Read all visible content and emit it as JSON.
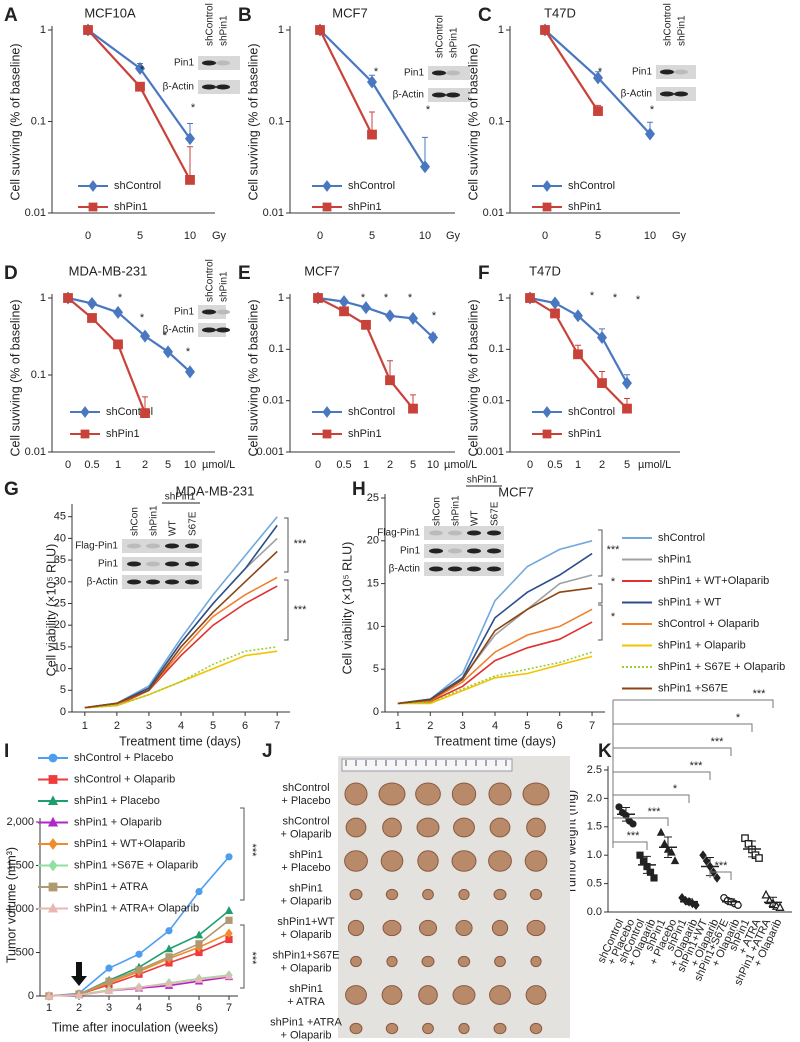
{
  "chart_data": [
    {
      "type": "line",
      "panel": "A",
      "title": "MCF10A",
      "ylabel": "Cell suviving (% of baseline)",
      "x_unit": "Gy",
      "log_scale": true,
      "ylim": [
        0.01,
        1
      ],
      "yticks": [
        0.01,
        0.1,
        1
      ],
      "categories": [
        "0",
        "5",
        "10"
      ],
      "series": [
        {
          "name": "shControl",
          "color": "#4a78c0",
          "marker": "diamond",
          "values": [
            1,
            0.38,
            0.065
          ],
          "errors": [
            null,
            0.05,
            0.03
          ]
        },
        {
          "name": "shPin1",
          "color": "#c9423a",
          "marker": "square",
          "values": [
            1,
            0.24,
            0.023
          ],
          "errors": [
            null,
            null,
            0.03
          ]
        }
      ],
      "legend": "lower-left",
      "annotations": [
        "*",
        "*"
      ],
      "inset": {
        "columns": [
          "shControl",
          "shPin1"
        ],
        "rows": [
          "Pin1",
          "β-Actin"
        ]
      }
    },
    {
      "type": "line",
      "panel": "B",
      "title": "MCF7",
      "ylabel": "Cell suviving (% of baseline)",
      "x_unit": "Gy",
      "log_scale": true,
      "ylim": [
        0.01,
        1
      ],
      "yticks": [
        0.01,
        0.1,
        1
      ],
      "categories": [
        "0",
        "5",
        "10"
      ],
      "series": [
        {
          "name": "shControl",
          "color": "#4a78c0",
          "marker": "diamond",
          "values": [
            1,
            0.27,
            0.032
          ],
          "errors": [
            null,
            0.05,
            0.035
          ]
        },
        {
          "name": "shPin1",
          "color": "#c9423a",
          "marker": "square",
          "values": [
            1,
            0.072,
            null
          ],
          "errors": [
            null,
            0.055,
            null
          ]
        }
      ],
      "legend": "lower-left",
      "annotations": [
        "*",
        "*"
      ],
      "inset": {
        "columns": [
          "shControl",
          "shPin1"
        ],
        "rows": [
          "Pin1",
          "β-Actin"
        ]
      }
    },
    {
      "type": "line",
      "panel": "C",
      "title": "T47D",
      "ylabel": "Cell suviving (% of baseline)",
      "x_unit": "Gy",
      "log_scale": true,
      "ylim": [
        0.01,
        1
      ],
      "yticks": [
        0.01,
        0.1,
        1
      ],
      "categories": [
        "0",
        "5",
        "10"
      ],
      "series": [
        {
          "name": "shControl",
          "color": "#4a78c0",
          "marker": "diamond",
          "values": [
            1,
            0.3,
            0.073
          ],
          "errors": [
            null,
            0.05,
            0.025
          ]
        },
        {
          "name": "shPin1",
          "color": "#c9423a",
          "marker": "square",
          "values": [
            1,
            0.13,
            null
          ],
          "errors": [
            null,
            0.02,
            null
          ]
        }
      ],
      "legend": "lower-left",
      "annotations": [
        "*",
        "*"
      ],
      "inset": {
        "columns": [
          "shControl",
          "shPin1"
        ],
        "rows": [
          "Pin1",
          "β-Actin"
        ]
      }
    },
    {
      "type": "line",
      "panel": "D",
      "title": "MDA-MB-231",
      "ylabel": "Cell suviving (% of baseline)",
      "x_unit": "µmol/L",
      "log_scale": true,
      "ylim": [
        0.01,
        1
      ],
      "yticks": [
        0.01,
        0.1,
        1
      ],
      "categories": [
        "0",
        "0.5",
        "1",
        "2",
        "5",
        "10"
      ],
      "series": [
        {
          "name": "shControl",
          "color": "#4a78c0",
          "marker": "diamond",
          "values": [
            1,
            0.85,
            0.65,
            0.32,
            0.2,
            0.11
          ],
          "errors": [
            null,
            null,
            null,
            null,
            null,
            null
          ]
        },
        {
          "name": "shPin1",
          "color": "#c9423a",
          "marker": "square",
          "values": [
            1,
            0.55,
            0.25,
            0.032,
            null,
            null
          ],
          "errors": [
            null,
            null,
            0.03,
            0.02,
            null,
            null
          ]
        }
      ],
      "legend": "lower-left",
      "annotations": [
        "*",
        "*",
        "*",
        "*"
      ],
      "inset": {
        "columns": [
          "shControl",
          "shPin1"
        ],
        "rows": [
          "Pin1",
          "β-Actin"
        ]
      }
    },
    {
      "type": "line",
      "panel": "E",
      "title": "MCF7",
      "ylabel": "Cell suviving (% of baseline)",
      "x_unit": "µmol/L",
      "log_scale": true,
      "ylim": [
        0.001,
        1
      ],
      "yticks": [
        0.001,
        0.01,
        0.1,
        1
      ],
      "categories": [
        "0",
        "0.5",
        "1",
        "2",
        "5",
        "10"
      ],
      "series": [
        {
          "name": "shControl",
          "color": "#4a78c0",
          "marker": "diamond",
          "values": [
            1,
            0.85,
            0.65,
            0.45,
            0.4,
            0.17
          ],
          "errors": [
            null,
            null,
            null,
            null,
            null,
            0.03
          ]
        },
        {
          "name": "shPin1",
          "color": "#c9423a",
          "marker": "square",
          "values": [
            1,
            0.55,
            0.3,
            0.025,
            0.007,
            null
          ],
          "errors": [
            null,
            null,
            null,
            0.035,
            0.006,
            null
          ]
        }
      ],
      "legend": "lower-left",
      "annotations": [
        "*",
        "*",
        "*",
        "*"
      ]
    },
    {
      "type": "line",
      "panel": "F",
      "title": "T47D",
      "ylabel": "Cell suviving (% of baseline)",
      "x_unit": "µmol/L",
      "log_scale": true,
      "ylim": [
        0.001,
        1
      ],
      "yticks": [
        0.001,
        0.01,
        0.1,
        1
      ],
      "categories": [
        "0",
        "0.5",
        "1",
        "2",
        "5"
      ],
      "series": [
        {
          "name": "shControl",
          "color": "#4a78c0",
          "marker": "diamond",
          "values": [
            1,
            0.8,
            0.45,
            0.17,
            0.022
          ],
          "errors": [
            null,
            null,
            null,
            0.08,
            0.01
          ]
        },
        {
          "name": "shPin1",
          "color": "#c9423a",
          "marker": "square",
          "values": [
            1,
            0.5,
            0.08,
            0.022,
            0.007
          ],
          "errors": [
            null,
            null,
            0.04,
            0.015,
            0.004
          ]
        }
      ],
      "legend": "lower-left",
      "annotations": [
        "*",
        "*",
        "*"
      ]
    },
    {
      "type": "line",
      "panel": "G",
      "title": "MDA-MB-231",
      "ylabel": "Cell viability (×10⁵ RLU)",
      "xlabel": "Treatment time (days)",
      "ylim": [
        0,
        47
      ],
      "yticks": [
        0,
        5,
        10,
        15,
        20,
        25,
        30,
        35,
        40,
        45
      ],
      "xlim": [
        0.6,
        7.4
      ],
      "xticks": [
        1,
        2,
        3,
        4,
        5,
        6,
        7
      ],
      "x": [
        1,
        2,
        3,
        4,
        5,
        6,
        7
      ],
      "series": [
        {
          "color": "#72a8dc",
          "values": [
            1,
            2,
            6,
            17,
            27,
            36,
            45
          ]
        },
        {
          "color": "#a0a0a0",
          "values": [
            1,
            2,
            5.5,
            16,
            25,
            33,
            40
          ]
        },
        {
          "color": "#e03030",
          "values": [
            1,
            1.5,
            5,
            13,
            20,
            25,
            29
          ]
        },
        {
          "color": "#2b4f8a",
          "values": [
            1,
            2,
            5.5,
            16,
            25,
            33,
            43
          ]
        },
        {
          "color": "#f08030",
          "values": [
            1,
            1.8,
            5,
            14,
            22,
            27,
            31
          ]
        },
        {
          "color": "#f2c400",
          "values": [
            1,
            1.5,
            4,
            7,
            10,
            13,
            14
          ]
        },
        {
          "color": "#9acd32",
          "line_style": "dotted",
          "values": [
            1,
            1.5,
            4,
            7,
            11,
            14,
            15
          ]
        },
        {
          "color": "#8b4513",
          "values": [
            1,
            2,
            5,
            15,
            23,
            30,
            37
          ]
        }
      ],
      "annotations": [
        "***",
        "***"
      ],
      "inset": {
        "columns": [
          "shCon",
          "shPin1",
          "WT",
          "S67E"
        ],
        "group": "shPin1",
        "rows": [
          "Flag-Pin1",
          "Pin1",
          "β-Actin"
        ]
      }
    },
    {
      "type": "line",
      "panel": "H",
      "title": "MCF7",
      "ylabel": "Cell viability (×10⁵ RLU)",
      "xlabel": "Treatment time (days)",
      "ylim": [
        0,
        25
      ],
      "yticks": [
        0,
        5,
        10,
        15,
        20,
        25
      ],
      "xlim": [
        0.6,
        7.4
      ],
      "xticks": [
        1,
        2,
        3,
        4,
        5,
        6,
        7
      ],
      "x": [
        1,
        2,
        3,
        4,
        5,
        6,
        7
      ],
      "series": [
        {
          "name": "shControl",
          "color": "#72a8dc",
          "values": [
            1,
            1.5,
            4.5,
            13,
            17,
            19,
            20
          ]
        },
        {
          "name": "shPin1",
          "color": "#a0a0a0",
          "values": [
            1,
            1.3,
            4,
            9,
            12,
            15,
            16
          ]
        },
        {
          "name": "shPin1 + WT+Olaparib",
          "color": "#e03030",
          "values": [
            1,
            1.2,
            3,
            6,
            7.5,
            8.5,
            10.5
          ]
        },
        {
          "name": "shPin1 + WT",
          "color": "#2b4f8a",
          "values": [
            1,
            1.5,
            4,
            11,
            14,
            16,
            18.5
          ]
        },
        {
          "name": "shControl + Olaparib",
          "color": "#f08030",
          "values": [
            1,
            1.3,
            3.5,
            7,
            9,
            10,
            12
          ]
        },
        {
          "name": "shPin1 + Olaparib",
          "color": "#f2c400",
          "values": [
            1,
            1,
            2.5,
            4,
            4.5,
            5.5,
            6.5
          ]
        },
        {
          "name": "shPin1 + S67E + Olaparib",
          "color": "#9acd32",
          "line_style": "dotted",
          "values": [
            1,
            1.1,
            2.7,
            4.2,
            5,
            5.8,
            7
          ]
        },
        {
          "name": "shPin1 +S67E",
          "color": "#8b4513",
          "values": [
            1,
            1.4,
            3.8,
            9.5,
            12,
            14,
            14.5
          ]
        }
      ],
      "legend": "right",
      "annotations": [
        "***",
        "*",
        "*"
      ],
      "inset": {
        "columns": [
          "shCon",
          "shPin1",
          "WT",
          "S67E"
        ],
        "group": "shPin1",
        "rows": [
          "Flag-Pin1",
          "Pin1",
          "β-Actin"
        ]
      }
    },
    {
      "type": "line",
      "panel": "I",
      "ylabel": "Tumor volume (mm³)",
      "xlabel": "Time after inoculation (weeks)",
      "ylim": [
        0,
        2000
      ],
      "yticks": [
        0,
        500,
        {
          "value": 1000,
          "label": "1,000"
        },
        {
          "value": 1500,
          "label": "1,500"
        },
        {
          "value": 2000,
          "label": "2,000"
        }
      ],
      "xlim": [
        0.7,
        7.3
      ],
      "xticks": [
        1,
        2,
        3,
        4,
        5,
        6,
        7
      ],
      "x": [
        1,
        2,
        3,
        4,
        5,
        6,
        7
      ],
      "series": [
        {
          "name": "shControl + Placebo",
          "color": "#4e9ef0",
          "marker": "circle",
          "values": [
            0,
            30,
            320,
            480,
            750,
            1200,
            1600
          ]
        },
        {
          "name": "shControl + Olaparib",
          "color": "#ef3b3b",
          "marker": "square",
          "values": [
            0,
            20,
            130,
            250,
            380,
            500,
            650
          ]
        },
        {
          "name": "shPin1 + Placebo",
          "color": "#1e9e6e",
          "marker": "triangle",
          "values": [
            0,
            20,
            180,
            330,
            540,
            700,
            980
          ]
        },
        {
          "name": "shPin1 + Olaparib",
          "color": "#b026c8",
          "marker": "triangle",
          "values": [
            0,
            10,
            60,
            90,
            120,
            170,
            220
          ]
        },
        {
          "name": "shPin1 + WT+Olaparib",
          "color": "#f08a2a",
          "marker": "diamond",
          "values": [
            0,
            20,
            150,
            280,
            430,
            560,
            720
          ]
        },
        {
          "name": "shPin1 +S67E + Olaparib",
          "color": "#90e0a0",
          "marker": "diamond",
          "values": [
            0,
            15,
            70,
            100,
            150,
            200,
            240
          ]
        },
        {
          "name": "shPin1 + ATRA",
          "color": "#b09870",
          "marker": "square",
          "values": [
            0,
            20,
            170,
            300,
            450,
            600,
            870
          ]
        },
        {
          "name": "shPin1 + ATRA+ Olaparib",
          "color": "#e8b8b0",
          "marker": "triangle",
          "values": [
            0,
            10,
            60,
            100,
            140,
            190,
            230
          ]
        }
      ],
      "legend": "upper-left",
      "annotations": [
        "***",
        "***"
      ]
    },
    {
      "type": "dot",
      "panel": "K",
      "ylabel": "Tumor weight (mg)",
      "ylim": [
        0,
        2.5
      ],
      "yticks": [
        {
          "value": 0,
          "label": "0.0"
        },
        0.5,
        {
          "value": 1,
          "label": "1.0"
        },
        1.5,
        {
          "value": 2,
          "label": "2.0"
        },
        2.5
      ],
      "categories": [
        [
          "shControl",
          "+ Placebo"
        ],
        [
          "shControl",
          "+ Olaparib"
        ],
        [
          "shPin1",
          "+ Placebo"
        ],
        [
          "shPin1",
          "+ Olaparib"
        ],
        [
          "shPin1+WT",
          "+ Olaparib"
        ],
        [
          "shPin1+S67E",
          "+ Olaparib"
        ],
        [
          "shPin1",
          "+ ATRA"
        ],
        [
          "shPin1 +ATRA",
          "+ Olaparib"
        ]
      ],
      "markers": [
        "circle",
        "square",
        "triangle",
        "diamond",
        "diamond",
        "circle-open",
        "square-open",
        "triangle-open"
      ],
      "points": [
        [
          1.85,
          1.75,
          1.7,
          1.6,
          1.55
        ],
        [
          1.0,
          0.9,
          0.8,
          0.7,
          0.6
        ],
        [
          1.4,
          1.2,
          1.1,
          1.05,
          0.9
        ],
        [
          0.25,
          0.2,
          0.18,
          0.15,
          0.12
        ],
        [
          1.0,
          0.9,
          0.8,
          0.7,
          0.6
        ],
        [
          0.25,
          0.2,
          0.18,
          0.15,
          0.12
        ],
        [
          1.3,
          1.2,
          1.1,
          1.0,
          0.95
        ],
        [
          0.3,
          0.2,
          0.15,
          0.1,
          0.08
        ]
      ],
      "means": [
        1.72,
        0.83,
        1.14,
        0.18,
        0.8,
        0.18,
        1.11,
        0.17
      ],
      "sds": [
        0.12,
        0.15,
        0.18,
        0.05,
        0.16,
        0.05,
        0.14,
        0.09
      ],
      "significance": [
        "***",
        "***",
        "*",
        "***",
        "***",
        "*",
        "***",
        "***"
      ],
      "color": "#222"
    }
  ],
  "panel_j": {
    "panel": "J",
    "rows": [
      [
        "shControl",
        "+ Placebo"
      ],
      [
        "shControl",
        "+ Olaparib"
      ],
      [
        "shPin1",
        "+ Placebo"
      ],
      [
        "shPin1",
        "+ Olaparib"
      ],
      [
        "shPin1+WT",
        "+ Olaparib"
      ],
      [
        "shPin1+S67E",
        "+ Olaparib"
      ],
      [
        "shPin1",
        "+ ATRA"
      ],
      [
        "shPin1 +ATRA",
        "+ Olaparib"
      ]
    ]
  }
}
